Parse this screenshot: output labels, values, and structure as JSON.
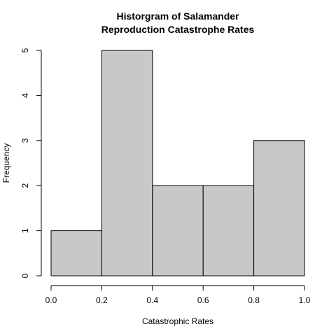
{
  "chart_data": {
    "type": "bar",
    "title_lines": [
      "Historgram of Salamander",
      "Reproduction Catastrophe Rates"
    ],
    "xlabel": "Catastrophic Rates",
    "ylabel": "Frequency",
    "bins": [
      {
        "from": 0.0,
        "to": 0.2,
        "count": 1
      },
      {
        "from": 0.2,
        "to": 0.4,
        "count": 5
      },
      {
        "from": 0.4,
        "to": 0.6,
        "count": 2
      },
      {
        "from": 0.6,
        "to": 0.8,
        "count": 2
      },
      {
        "from": 0.8,
        "to": 1.0,
        "count": 3
      }
    ],
    "xlim": [
      0.0,
      1.0
    ],
    "ylim": [
      0,
      5
    ],
    "x_ticks": [
      "0.0",
      "0.2",
      "0.4",
      "0.6",
      "0.8",
      "1.0"
    ],
    "y_ticks": [
      "0",
      "1",
      "2",
      "3",
      "4",
      "5"
    ],
    "bar_color": "#c8c8c8",
    "grid": false
  }
}
